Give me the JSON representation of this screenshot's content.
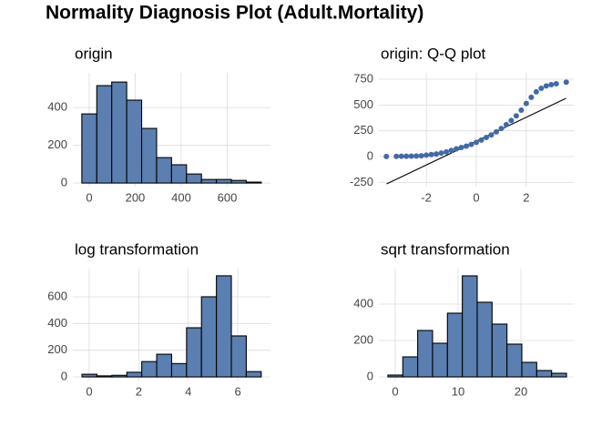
{
  "title": "Normality Diagnosis Plot (Adult.Mortality)",
  "chart_data": [
    {
      "type": "histogram",
      "title": "origin",
      "color": "#5a7fb0",
      "grid": true,
      "bins": [
        -32,
        33,
        98,
        163,
        228,
        293,
        358,
        423,
        488,
        553,
        618,
        683,
        748
      ],
      "values": [
        367,
        517,
        536,
        440,
        290,
        135,
        97,
        48,
        19,
        19,
        14,
        5
      ],
      "xlim": [
        -71,
        788
      ],
      "ylim": [
        -19,
        585
      ],
      "xticks": [
        0,
        200,
        400,
        600
      ],
      "yticks": [
        0,
        200,
        400
      ]
    },
    {
      "type": "qq",
      "title": "origin: Q-Q plot",
      "color": "#4169a8",
      "line_color": "#000000",
      "grid": true,
      "x": [
        -3.6,
        -3.2,
        -3.0,
        -2.8,
        -2.6,
        -2.4,
        -2.2,
        -2.0,
        -1.8,
        -1.6,
        -1.4,
        -1.2,
        -1.0,
        -0.8,
        -0.6,
        -0.4,
        -0.2,
        0,
        0.2,
        0.4,
        0.6,
        0.8,
        1.0,
        1.2,
        1.4,
        1.6,
        1.8,
        2.0,
        2.2,
        2.4,
        2.6,
        2.8,
        3.0,
        3.2,
        3.6
      ],
      "values": [
        1,
        2,
        3,
        4,
        5,
        6,
        8,
        14,
        20,
        26,
        34,
        45,
        60,
        75,
        88,
        102,
        118,
        138,
        160,
        185,
        210,
        240,
        273,
        310,
        350,
        395,
        450,
        515,
        575,
        628,
        662,
        685,
        697,
        706,
        722
      ],
      "line": {
        "x": [
          -3.59,
          3.59
        ],
        "values": [
          -265,
          565
        ]
      },
      "xlim": [
        -3.9,
        3.9
      ],
      "ylim": [
        -291,
        812
      ],
      "xticks": [
        -2,
        0,
        2
      ],
      "yticks": [
        -250,
        0,
        250,
        500,
        750
      ]
    },
    {
      "type": "histogram",
      "title": "log transformation",
      "color": "#5a7fb0",
      "grid": true,
      "bins": [
        -0.29,
        0.313,
        0.916,
        1.519,
        2.122,
        2.725,
        3.328,
        3.931,
        4.534,
        5.137,
        5.74,
        6.343,
        6.946
      ],
      "values": [
        20,
        8,
        12,
        35,
        115,
        170,
        100,
        368,
        600,
        757,
        307,
        40
      ],
      "xlim": [
        -0.66,
        7.32
      ],
      "ylim": [
        -27,
        811
      ],
      "xticks": [
        0,
        2,
        4,
        6
      ],
      "yticks": [
        0,
        200,
        400,
        600
      ]
    },
    {
      "type": "histogram",
      "title": "sqrt transformation",
      "color": "#5a7fb0",
      "grid": true,
      "bins": [
        -1.16,
        1.207,
        3.574,
        5.941,
        8.308,
        10.675,
        13.042,
        15.409,
        17.776,
        20.143,
        22.51,
        24.877,
        27.244
      ],
      "values": [
        10,
        110,
        255,
        185,
        350,
        555,
        410,
        290,
        180,
        80,
        35,
        20
      ],
      "xlim": [
        -2.6,
        28.4
      ],
      "ylim": [
        -20,
        595
      ],
      "xticks": [
        0,
        10,
        20
      ],
      "yticks": [
        0,
        200,
        400
      ]
    }
  ]
}
